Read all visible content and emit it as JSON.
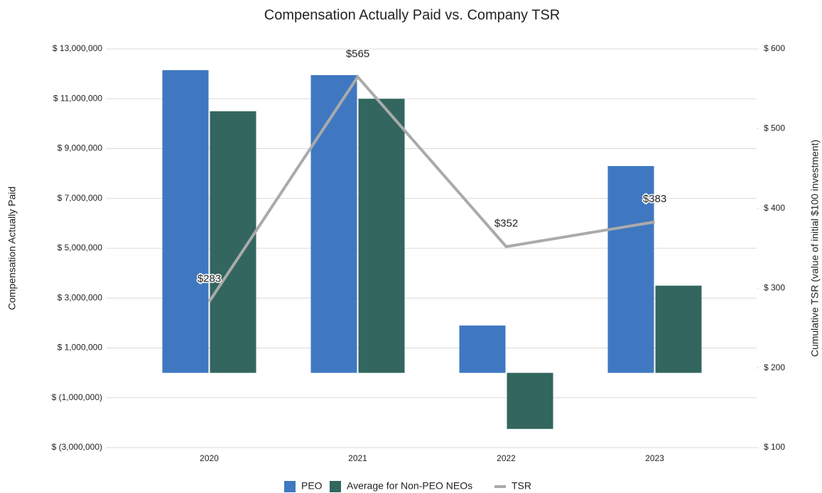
{
  "chart_data": {
    "type": "bar",
    "title": "Compensation Actually Paid vs. Company TSR",
    "ylabel": "Compensation Actually Paid",
    "y2label": "Cumulative TSR (value of initial $100 investment)",
    "categories": [
      "2020",
      "2021",
      "2022",
      "2023"
    ],
    "series": [
      {
        "name": "PEO",
        "color": "#3f78c1",
        "values": [
          12150000,
          11950000,
          1900000,
          8300000
        ]
      },
      {
        "name": "Average for Non-PEO NEOs",
        "color": "#32665f",
        "values": [
          10500000,
          11000000,
          -2250000,
          3500000
        ]
      },
      {
        "name": "TSR",
        "color": "#aaaaaa",
        "type": "line",
        "axis": "y2",
        "values": [
          283,
          565,
          352,
          383
        ],
        "value_labels": [
          "$283",
          "$565",
          "$352",
          "$383"
        ]
      }
    ],
    "ylim": [
      -3000000,
      13000000
    ],
    "yticks": [
      {
        "value": -3000000,
        "label": "$ (3,000,000)"
      },
      {
        "value": -1000000,
        "label": "$ (1,000,000)"
      },
      {
        "value": 1000000,
        "label": "$ 1,000,000"
      },
      {
        "value": 3000000,
        "label": "$ 3,000,000"
      },
      {
        "value": 5000000,
        "label": "$ 5,000,000"
      },
      {
        "value": 7000000,
        "label": "$ 7,000,000"
      },
      {
        "value": 9000000,
        "label": "$ 9,000,000"
      },
      {
        "value": 11000000,
        "label": "$ 11,000,000"
      },
      {
        "value": 13000000,
        "label": "$ 13,000,000"
      }
    ],
    "y2lim": [
      100,
      600
    ],
    "y2ticks": [
      {
        "value": 100,
        "label": "$ 100"
      },
      {
        "value": 200,
        "label": "$ 200"
      },
      {
        "value": 300,
        "label": "$ 300"
      },
      {
        "value": 400,
        "label": "$ 400"
      },
      {
        "value": 500,
        "label": "$ 500"
      },
      {
        "value": 600,
        "label": "$ 600"
      }
    ],
    "grid": true,
    "legend": "bottom"
  }
}
